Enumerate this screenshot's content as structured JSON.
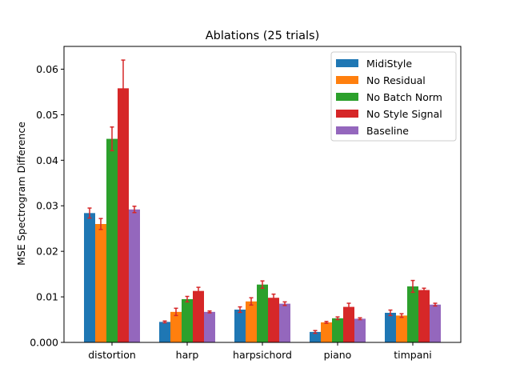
{
  "chart_data": {
    "type": "bar",
    "title": "Ablations (25 trials)",
    "xlabel": "",
    "ylabel": "MSE Spectrogram Difference",
    "ylim": [
      0,
      0.065
    ],
    "yticks": [
      "0.000",
      "0.01",
      "0.02",
      "0.03",
      "0.04",
      "0.05",
      "0.06"
    ],
    "ytick_values": [
      0,
      0.01,
      0.02,
      0.03,
      0.04,
      0.05,
      0.06
    ],
    "categories": [
      "distortion",
      "harp",
      "harpsichord",
      "piano",
      "timpani"
    ],
    "legend_position": "top-right",
    "error_bar_color": "#d62728",
    "series": [
      {
        "name": "MidiStyle",
        "color": "#1f77b4",
        "values": [
          0.0284,
          0.0045,
          0.0072,
          0.0023,
          0.0065
        ],
        "errors": [
          0.0011,
          0.0002,
          0.0006,
          0.0003,
          0.0006
        ]
      },
      {
        "name": "No Residual",
        "color": "#ff7f0e",
        "values": [
          0.026,
          0.0067,
          0.009,
          0.0044,
          0.0059
        ],
        "errors": [
          0.0012,
          0.0008,
          0.0008,
          0.0002,
          0.0004
        ]
      },
      {
        "name": "No Batch Norm",
        "color": "#2ca02c",
        "values": [
          0.0447,
          0.0095,
          0.0127,
          0.0053,
          0.0123
        ],
        "errors": [
          0.0026,
          0.0006,
          0.0008,
          0.0003,
          0.0013
        ]
      },
      {
        "name": "No Style Signal",
        "color": "#d62728",
        "values": [
          0.0558,
          0.0113,
          0.0098,
          0.0078,
          0.0115
        ],
        "errors": [
          0.0062,
          0.0008,
          0.0008,
          0.0008,
          0.0004
        ]
      },
      {
        "name": "Baseline",
        "color": "#9467bd",
        "values": [
          0.0292,
          0.0067,
          0.0085,
          0.0052,
          0.0083
        ],
        "errors": [
          0.0007,
          0.0002,
          0.0004,
          0.0002,
          0.0003
        ]
      }
    ]
  }
}
